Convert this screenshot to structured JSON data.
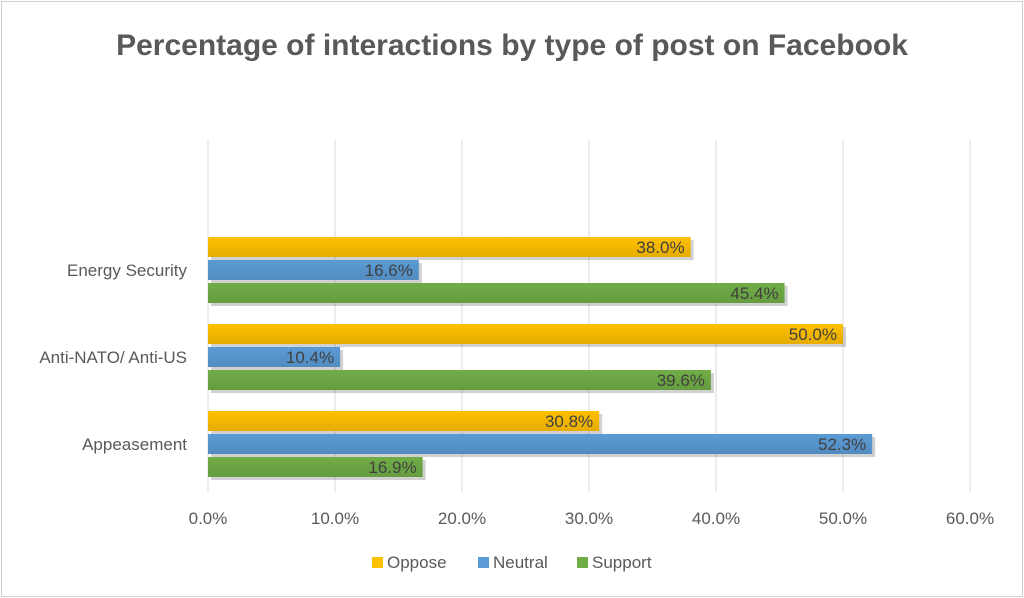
{
  "chart_data": {
    "type": "bar",
    "orientation": "horizontal",
    "title": "Percentage of interactions by type of post on Facebook",
    "categories": [
      "Energy Security",
      "Anti-NATO/ Anti-US",
      "Appeasement"
    ],
    "series": [
      {
        "name": "Oppose",
        "color": "#FFC000",
        "values": [
          38.0,
          50.0,
          30.8
        ]
      },
      {
        "name": "Neutral",
        "color": "#5B9BD5",
        "values": [
          16.6,
          10.4,
          52.3
        ]
      },
      {
        "name": "Support",
        "color": "#70AD47",
        "values": [
          45.4,
          39.6,
          16.9
        ]
      }
    ],
    "xlim": [
      0,
      60
    ],
    "xticks": [
      "0.0%",
      "10.0%",
      "20.0%",
      "30.0%",
      "40.0%",
      "50.0%",
      "60.0%"
    ],
    "value_format": "percent_1dp",
    "grid": "vertical",
    "legend": "bottom"
  }
}
